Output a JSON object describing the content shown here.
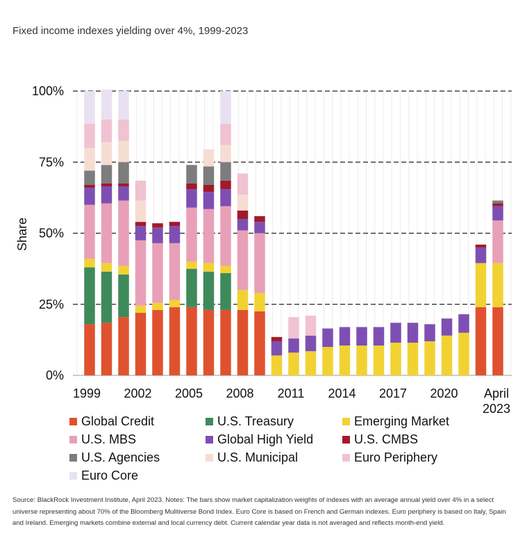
{
  "title": "Fixed income indexes yielding over 4%, 1999-2023",
  "source": "Source: BlackRock Investment Institute, April 2023. Notes: The bars show market capitalization weights of indexes with an average annual yield over 4% in a select universe representing about 70% of the Bloomberg Mulitiverse Bond Index. Euro Core is based on French and German indexes. Euro periphery is based on Italy, Spain and Ireland. Emerging markets combine external and local currency debt. Current calendar year data is not averaged and reflects month-end yield.",
  "chart_data": {
    "type": "bar",
    "stacked": true,
    "ylabel": "Share",
    "ylim": [
      0,
      100
    ],
    "yticks": [
      0,
      25,
      50,
      75,
      100
    ],
    "ytick_labels": [
      "0%",
      "25%",
      "50%",
      "75%",
      "100%"
    ],
    "xtick_labels": [
      {
        "label": "1999",
        "at": "1999"
      },
      {
        "label": "2002",
        "at": "2002"
      },
      {
        "label": "2005",
        "at": "2005"
      },
      {
        "label": "2008",
        "at": "2008"
      },
      {
        "label": "2011",
        "at": "2011"
      },
      {
        "label": "2014",
        "at": "2014"
      },
      {
        "label": "2017",
        "at": "2017"
      },
      {
        "label": "2020",
        "at": "2020"
      },
      {
        "label": "April\n2023",
        "at": "April 2023"
      }
    ],
    "categories": [
      "1999",
      "2000",
      "2001",
      "2002",
      "2003",
      "2004",
      "2005",
      "2006",
      "2007",
      "2008",
      "2009",
      "2010",
      "2011",
      "2012",
      "2013",
      "2014",
      "2015",
      "2016",
      "2017",
      "2018",
      "2019",
      "2020",
      "2021",
      "2022",
      "April 2023"
    ],
    "series": [
      {
        "name": "Global Credit",
        "color": "#e0522f",
        "values": [
          18,
          18.5,
          20.5,
          22,
          23,
          24,
          24,
          23,
          23,
          23,
          22.5,
          0,
          0,
          0,
          0,
          0,
          0,
          0,
          0,
          0,
          0,
          0,
          0,
          24,
          24
        ]
      },
      {
        "name": "U.S. Treasury",
        "color": "#3f8a5b",
        "values": [
          20,
          18,
          15,
          0,
          0,
          0,
          13.5,
          13.5,
          13,
          0,
          0,
          0,
          0,
          0,
          0,
          0,
          0,
          0,
          0,
          0,
          0,
          0,
          0,
          0,
          0
        ]
      },
      {
        "name": "Emerging Market",
        "color": "#f2d232",
        "values": [
          3,
          3,
          3,
          2.5,
          2.5,
          2.5,
          2.5,
          3,
          2.5,
          7,
          6.5,
          7,
          8,
          8.5,
          10,
          10.5,
          10.5,
          10.5,
          11.5,
          11.5,
          12,
          14,
          15,
          15.5,
          15.5
        ]
      },
      {
        "name": "U.S. MBS",
        "color": "#e8a0b8",
        "values": [
          19,
          21,
          23,
          23,
          21,
          20,
          19,
          19,
          21,
          21,
          21,
          0,
          0,
          0,
          0,
          0,
          0,
          0,
          0,
          0,
          0,
          0,
          0,
          0,
          15
        ]
      },
      {
        "name": "Global High Yield",
        "color": "#7e4fb3",
        "values": [
          6,
          6,
          5,
          5,
          5.5,
          6,
          6.5,
          6,
          6,
          4,
          4,
          5,
          5,
          5.5,
          6.5,
          6.5,
          6.5,
          6.5,
          7,
          7,
          6,
          6,
          6.5,
          5.5,
          5
        ]
      },
      {
        "name": "U.S. CMBS",
        "color": "#a3192b",
        "values": [
          1,
          1,
          1,
          1.5,
          1.5,
          1.5,
          2,
          2.5,
          3,
          3,
          2,
          1.5,
          0,
          0,
          0,
          0,
          0,
          0,
          0,
          0,
          0,
          0,
          0,
          1,
          1
        ]
      },
      {
        "name": "U.S. Agencies",
        "color": "#7d7d7d",
        "values": [
          5,
          6.5,
          7.5,
          0,
          0,
          0,
          6.5,
          6.5,
          6.5,
          0,
          0,
          0,
          0,
          0,
          0,
          0,
          0,
          0,
          0,
          0,
          0,
          0,
          0,
          0,
          1
        ]
      },
      {
        "name": "U.S. Municipal",
        "color": "#f6ddd2",
        "values": [
          8,
          8,
          7.5,
          7.5,
          0,
          0,
          0,
          6,
          6,
          5.5,
          0,
          0,
          0,
          0,
          0,
          0,
          0,
          0,
          0,
          0,
          0,
          0,
          0,
          0,
          0
        ]
      },
      {
        "name": "Euro Periphery",
        "color": "#f0c2d2",
        "values": [
          8.5,
          8,
          7.5,
          7,
          0,
          0,
          0,
          0,
          7.5,
          7.5,
          0,
          0,
          7.5,
          7,
          0,
          0,
          0,
          0,
          0,
          0,
          0,
          0,
          0,
          0,
          0
        ]
      },
      {
        "name": "Euro Core",
        "color": "#e9e1f2",
        "values": [
          11.5,
          10.5,
          10,
          0,
          0,
          0,
          0,
          0,
          11.5,
          0,
          0,
          0,
          0,
          0,
          0,
          0,
          0,
          0,
          0,
          0,
          0,
          0,
          0,
          0,
          0
        ]
      }
    ],
    "legend_placement": "bottom",
    "legend_columns": 3
  }
}
